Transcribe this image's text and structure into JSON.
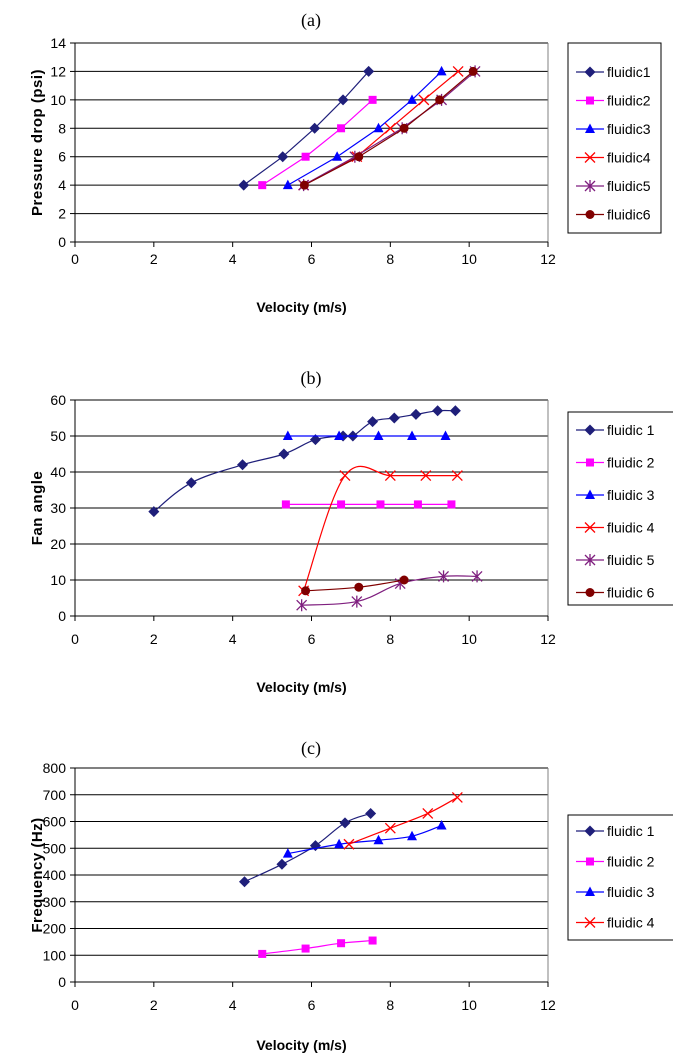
{
  "chart_data": [
    {
      "panel": "(a)",
      "type": "line",
      "xlabel": "Velocity (m/s)",
      "ylabel": "Pressure drop (psi)",
      "xlim": [
        0,
        12
      ],
      "ylim": [
        0,
        14
      ],
      "xticks": [
        0,
        2,
        4,
        6,
        8,
        10,
        12
      ],
      "yticks": [
        0,
        2,
        4,
        6,
        8,
        10,
        12,
        14
      ],
      "grid": "horizontal",
      "legend_position": "right",
      "smooth": false,
      "series": [
        {
          "name": "fluidic1",
          "color": "#1F1F7A",
          "marker": "diamond",
          "points": [
            [
              4.28,
              4
            ],
            [
              5.27,
              6
            ],
            [
              6.08,
              8
            ],
            [
              6.8,
              10
            ],
            [
              7.45,
              12
            ]
          ]
        },
        {
          "name": "fluidic2",
          "color": "#FF00FF",
          "marker": "square",
          "points": [
            [
              4.75,
              4
            ],
            [
              5.85,
              6
            ],
            [
              6.75,
              8
            ],
            [
              7.55,
              10
            ]
          ]
        },
        {
          "name": "fluidic3",
          "color": "#0000FF",
          "marker": "triangle",
          "points": [
            [
              5.4,
              4
            ],
            [
              6.65,
              6
            ],
            [
              7.7,
              8
            ],
            [
              8.55,
              10
            ],
            [
              9.3,
              12
            ]
          ]
        },
        {
          "name": "fluidic4",
          "color": "#FF0000",
          "marker": "x",
          "points": [
            [
              5.8,
              4
            ],
            [
              7.15,
              6
            ],
            [
              8.0,
              8
            ],
            [
              8.85,
              10
            ],
            [
              9.72,
              12
            ]
          ]
        },
        {
          "name": "fluidic5",
          "color": "#7F1F7F",
          "marker": "star",
          "points": [
            [
              5.8,
              4
            ],
            [
              7.1,
              6
            ],
            [
              8.3,
              8
            ],
            [
              9.3,
              10
            ],
            [
              10.15,
              12
            ]
          ]
        },
        {
          "name": "fluidic6",
          "color": "#800000",
          "marker": "circle",
          "points": [
            [
              5.82,
              4
            ],
            [
              7.2,
              6
            ],
            [
              8.35,
              8
            ],
            [
              9.25,
              10
            ],
            [
              10.1,
              12
            ]
          ]
        }
      ]
    },
    {
      "panel": "(b)",
      "type": "line",
      "xlabel": "Velocity (m/s)",
      "ylabel": "Fan angle",
      "xlim": [
        0,
        12
      ],
      "ylim": [
        0,
        60
      ],
      "xticks": [
        0,
        2,
        4,
        6,
        8,
        10,
        12
      ],
      "yticks": [
        0,
        10,
        20,
        30,
        40,
        50,
        60
      ],
      "grid": "horizontal",
      "legend_position": "right",
      "smooth": true,
      "series": [
        {
          "name": "fluidic 1",
          "color": "#1F1F7A",
          "marker": "diamond",
          "points": [
            [
              2.0,
              29
            ],
            [
              2.95,
              37
            ],
            [
              4.25,
              42
            ],
            [
              5.3,
              45
            ],
            [
              6.1,
              49
            ],
            [
              6.8,
              50
            ],
            [
              7.05,
              50
            ],
            [
              7.55,
              54
            ],
            [
              8.1,
              55
            ],
            [
              8.65,
              56
            ],
            [
              9.2,
              57
            ],
            [
              9.65,
              57
            ]
          ]
        },
        {
          "name": "fluidic 2",
          "color": "#FF00FF",
          "marker": "square",
          "points": [
            [
              5.35,
              31
            ],
            [
              6.75,
              31
            ],
            [
              7.75,
              31
            ],
            [
              8.7,
              31
            ],
            [
              9.55,
              31
            ]
          ]
        },
        {
          "name": "fluidic 3",
          "color": "#0000FF",
          "marker": "triangle",
          "points": [
            [
              5.4,
              50
            ],
            [
              6.7,
              50
            ],
            [
              7.7,
              50
            ],
            [
              8.55,
              50
            ],
            [
              9.4,
              50
            ]
          ]
        },
        {
          "name": "fluidic 4",
          "color": "#FF0000",
          "marker": "x",
          "points": [
            [
              5.8,
              7
            ],
            [
              6.85,
              39
            ],
            [
              8.0,
              39
            ],
            [
              8.9,
              39
            ],
            [
              9.7,
              39
            ]
          ]
        },
        {
          "name": "fluidic 5",
          "color": "#7F1F7F",
          "marker": "star",
          "points": [
            [
              5.75,
              3
            ],
            [
              7.15,
              4
            ],
            [
              8.25,
              9
            ],
            [
              9.35,
              11
            ],
            [
              10.2,
              11
            ]
          ]
        },
        {
          "name": "fluidic 6",
          "color": "#800000",
          "marker": "circle",
          "points": [
            [
              5.85,
              7
            ],
            [
              7.2,
              8
            ],
            [
              8.35,
              10
            ]
          ]
        }
      ]
    },
    {
      "panel": "(c)",
      "type": "line",
      "xlabel": "Velocity (m/s)",
      "ylabel": "Frequency (Hz)",
      "xlim": [
        0,
        12
      ],
      "ylim": [
        0,
        800
      ],
      "xticks": [
        0,
        2,
        4,
        6,
        8,
        10,
        12
      ],
      "yticks": [
        0,
        100,
        200,
        300,
        400,
        500,
        600,
        700,
        800
      ],
      "grid": "horizontal",
      "legend_position": "right",
      "smooth": true,
      "series": [
        {
          "name": "fluidic 1",
          "color": "#1F1F7A",
          "marker": "diamond",
          "points": [
            [
              4.3,
              375
            ],
            [
              5.25,
              440
            ],
            [
              6.1,
              510
            ],
            [
              6.85,
              595
            ],
            [
              7.5,
              630
            ]
          ]
        },
        {
          "name": "fluidic 2",
          "color": "#FF00FF",
          "marker": "square",
          "points": [
            [
              4.75,
              105
            ],
            [
              5.85,
              125
            ],
            [
              6.75,
              145
            ],
            [
              7.55,
              155
            ]
          ]
        },
        {
          "name": "fluidic 3",
          "color": "#0000FF",
          "marker": "triangle",
          "points": [
            [
              5.4,
              480
            ],
            [
              6.7,
              515
            ],
            [
              7.7,
              530
            ],
            [
              8.55,
              545
            ],
            [
              9.3,
              585
            ]
          ]
        },
        {
          "name": "fluidic 4",
          "color": "#FF0000",
          "marker": "x",
          "points": [
            [
              6.95,
              515
            ],
            [
              8.0,
              575
            ],
            [
              8.95,
              630
            ],
            [
              9.7,
              690
            ]
          ]
        }
      ]
    }
  ]
}
